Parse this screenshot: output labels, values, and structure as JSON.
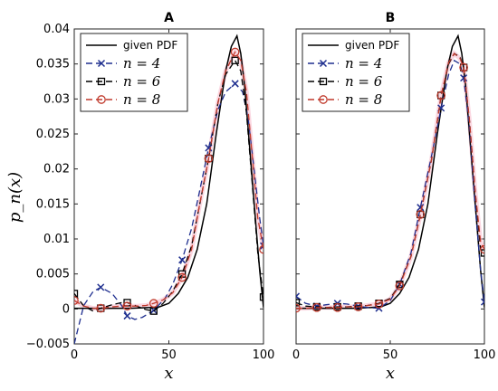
{
  "colors": {
    "given": "#000000",
    "n4": "#1f2f8f",
    "n6": "#000000",
    "n8": "#c0392b",
    "highlight": "#f7b6c8"
  },
  "chart_data": [
    {
      "type": "line",
      "title": "A",
      "xlabel": "x",
      "ylabel": "p_n(x)",
      "xlim": [
        0,
        100
      ],
      "ylim": [
        -0.005,
        0.04
      ],
      "xticks": [
        "0",
        "50",
        "100"
      ],
      "yticks": [
        "−0.005",
        "0",
        "0.005",
        "0.01",
        "0.015",
        "0.02",
        "0.025",
        "0.03",
        "0.035",
        "0.04"
      ],
      "legend_position": "top-left",
      "series": [
        {
          "name": "given PDF",
          "style": "solid",
          "marker": "none",
          "color": "#000000",
          "x": [
            0,
            10,
            20,
            30,
            40,
            45,
            50,
            55,
            60,
            65,
            70,
            75,
            80,
            83,
            86,
            88,
            90,
            93,
            96,
            98,
            100
          ],
          "y": [
            0.0001,
            0.0001,
            0.0001,
            0.0001,
            0.0002,
            0.0003,
            0.0008,
            0.0022,
            0.0045,
            0.0085,
            0.015,
            0.025,
            0.034,
            0.0375,
            0.039,
            0.0365,
            0.032,
            0.022,
            0.012,
            0.0055,
            0.0002
          ]
        },
        {
          "name": "n = 4",
          "style": "dashed",
          "marker": "x",
          "color": "#1f2f8f",
          "x": [
            0,
            5,
            10,
            14,
            20,
            25,
            28,
            32,
            36,
            42,
            48,
            52,
            57,
            62,
            66,
            71,
            76,
            80,
            85,
            89,
            92,
            95,
            98,
            100
          ],
          "y": [
            -0.005,
            0.0005,
            0.0025,
            0.0031,
            0.0022,
            0.0005,
            -0.001,
            -0.0015,
            -0.0012,
            -0.0002,
            0.0015,
            0.0035,
            0.007,
            0.0115,
            0.0165,
            0.023,
            0.0285,
            0.031,
            0.0322,
            0.031,
            0.027,
            0.02,
            0.013,
            0.009
          ],
          "marker_x": [
            14,
            28,
            42,
            57,
            71,
            85,
            100
          ],
          "marker_y": [
            0.0031,
            -0.001,
            -0.0002,
            0.007,
            0.023,
            0.0322,
            0.009
          ]
        },
        {
          "name": "n = 6",
          "style": "dashed",
          "marker": "square",
          "color": "#000000",
          "x": [
            0,
            5,
            10,
            14,
            20,
            25,
            28,
            33,
            38,
            42,
            47,
            52,
            57,
            62,
            66,
            71,
            76,
            80,
            85,
            88,
            91,
            94,
            97,
            100
          ],
          "y": [
            0.0022,
            0.0004,
            -0.0003,
            0.0001,
            0.0006,
            0.0009,
            0.0009,
            0.0004,
            -0.0001,
            -0.0003,
            0.0008,
            0.0025,
            0.005,
            0.009,
            0.0145,
            0.0215,
            0.0295,
            0.0335,
            0.0355,
            0.034,
            0.028,
            0.018,
            0.008,
            0.0017
          ],
          "marker_x": [
            0,
            14,
            28,
            42,
            57,
            71,
            85,
            100
          ],
          "marker_y": [
            0.0022,
            0.0001,
            0.0009,
            -0.0003,
            0.005,
            0.0215,
            0.0355,
            0.0017
          ]
        },
        {
          "name": "n = 8",
          "style": "dashed",
          "marker": "circle",
          "color": "#c0392b",
          "x": [
            0,
            5,
            10,
            14,
            20,
            25,
            28,
            33,
            38,
            42,
            47,
            52,
            57,
            62,
            66,
            71,
            76,
            80,
            85,
            88,
            91,
            94,
            97,
            100
          ],
          "y": [
            0.0012,
            0.0004,
            0.0001,
            0.0001,
            0.0003,
            0.0004,
            0.0004,
            0.0004,
            0.0005,
            0.0008,
            0.0013,
            0.0023,
            0.0045,
            0.0085,
            0.0145,
            0.0215,
            0.0295,
            0.034,
            0.0367,
            0.0355,
            0.031,
            0.022,
            0.013,
            0.0085
          ],
          "marker_x": [
            0,
            14,
            28,
            42,
            57,
            71,
            85,
            100
          ],
          "marker_y": [
            0.0012,
            0.0001,
            0.0004,
            0.0008,
            0.0045,
            0.0215,
            0.0367,
            0.0085
          ]
        }
      ]
    },
    {
      "type": "line",
      "title": "B",
      "xlabel": "x",
      "ylabel": "",
      "xlim": [
        0,
        100
      ],
      "ylim": [
        -0.005,
        0.04
      ],
      "xticks": [
        "0",
        "50",
        "100"
      ],
      "yticks": [],
      "legend_position": "top-left",
      "series": [
        {
          "name": "given PDF",
          "style": "solid",
          "marker": "none",
          "color": "#000000",
          "x": [
            0,
            10,
            20,
            30,
            40,
            45,
            50,
            55,
            60,
            65,
            70,
            75,
            80,
            83,
            86,
            88,
            90,
            93,
            96,
            98,
            100
          ],
          "y": [
            0.0001,
            0.0001,
            0.0001,
            0.0001,
            0.0002,
            0.0003,
            0.0008,
            0.0022,
            0.0045,
            0.0085,
            0.015,
            0.025,
            0.034,
            0.0375,
            0.039,
            0.0365,
            0.032,
            0.022,
            0.012,
            0.0055,
            0.0002
          ]
        },
        {
          "name": "n = 4",
          "style": "dashed",
          "marker": "x",
          "color": "#1f2f8f",
          "x": [
            0,
            5,
            11,
            16,
            22,
            27,
            33,
            38,
            44,
            50,
            55,
            61,
            66,
            72,
            77,
            81,
            84,
            87,
            89,
            92,
            95,
            98,
            100
          ],
          "y": [
            0.0018,
            0.0008,
            0.0004,
            0.0006,
            0.0008,
            0.0007,
            0.0004,
            0.0002,
            0.0001,
            0.0012,
            0.0035,
            0.008,
            0.0145,
            0.022,
            0.0287,
            0.0335,
            0.0355,
            0.035,
            0.033,
            0.026,
            0.015,
            0.0055,
            0.001
          ],
          "marker_x": [
            0,
            11,
            22,
            33,
            44,
            55,
            66,
            77,
            89,
            100
          ],
          "marker_y": [
            0.0018,
            0.0004,
            0.0008,
            0.0004,
            0.0001,
            0.0035,
            0.0145,
            0.0287,
            0.033,
            0.001
          ]
        },
        {
          "name": "n = 6",
          "style": "dashed",
          "marker": "square",
          "color": "#000000",
          "x": [
            0,
            5,
            11,
            16,
            22,
            27,
            33,
            38,
            44,
            50,
            55,
            61,
            66,
            72,
            77,
            81,
            84,
            87,
            89,
            92,
            95,
            98,
            100
          ],
          "y": [
            0.0009,
            0.0004,
            0.0003,
            0.0002,
            0.0003,
            0.0003,
            0.0004,
            0.0005,
            0.0008,
            0.0015,
            0.0035,
            0.0075,
            0.0135,
            0.0215,
            0.0305,
            0.035,
            0.0365,
            0.036,
            0.0345,
            0.027,
            0.017,
            0.0085,
            0.008
          ],
          "marker_x": [
            0,
            11,
            22,
            33,
            44,
            55,
            66,
            77,
            89,
            100
          ],
          "marker_y": [
            0.0009,
            0.0003,
            0.0003,
            0.0004,
            0.0008,
            0.0035,
            0.0135,
            0.0305,
            0.0345,
            0.008
          ]
        },
        {
          "name": "n = 8",
          "style": "dashed",
          "marker": "circle",
          "color": "#c0392b",
          "x": [
            0,
            5,
            11,
            16,
            22,
            27,
            33,
            38,
            44,
            50,
            55,
            61,
            66,
            72,
            77,
            81,
            84,
            87,
            89,
            92,
            95,
            98,
            100
          ],
          "y": [
            0.0001,
            0.0001,
            0.0002,
            0.0002,
            0.0002,
            0.0003,
            0.0003,
            0.0005,
            0.0007,
            0.0014,
            0.0033,
            0.0075,
            0.0135,
            0.0215,
            0.0305,
            0.0352,
            0.0365,
            0.0358,
            0.0345,
            0.027,
            0.017,
            0.0095,
            0.0085
          ],
          "marker_x": [
            0,
            11,
            22,
            33,
            44,
            55,
            66,
            77,
            89,
            100
          ],
          "marker_y": [
            0.0001,
            0.0002,
            0.0002,
            0.0003,
            0.0007,
            0.0033,
            0.0135,
            0.0305,
            0.0345,
            0.0085
          ]
        }
      ]
    }
  ]
}
